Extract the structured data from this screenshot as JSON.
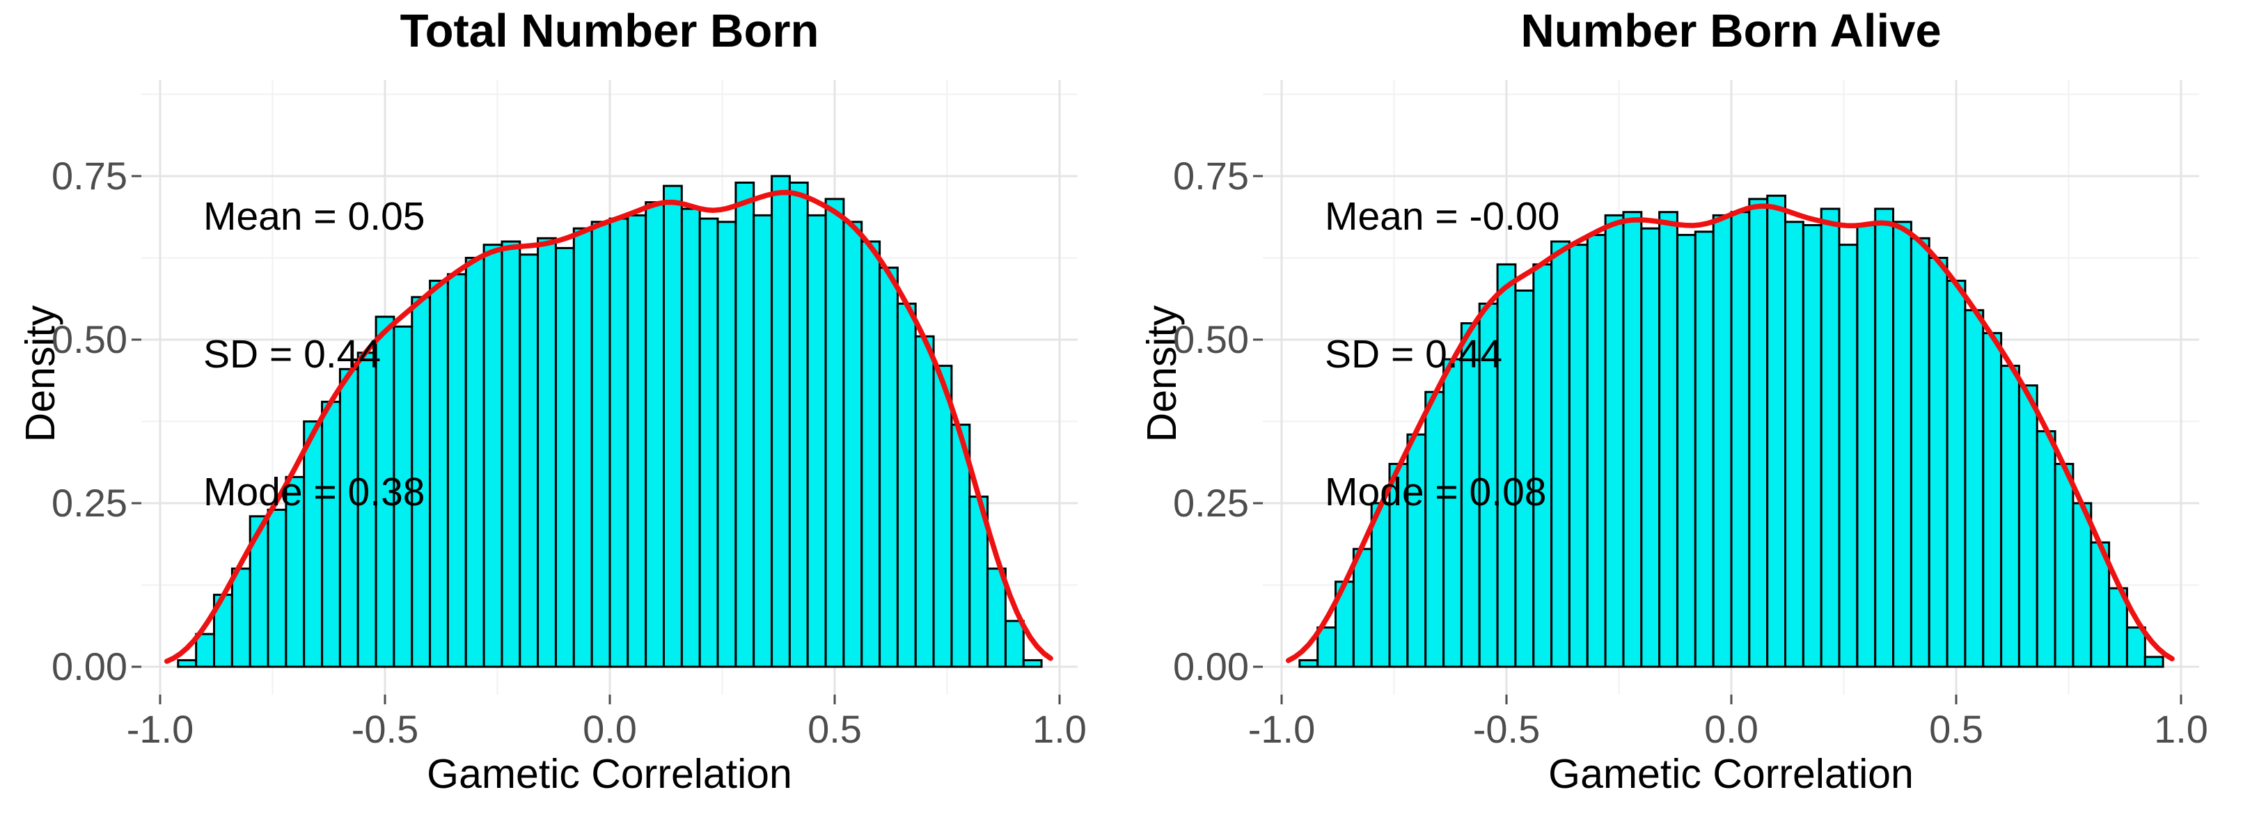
{
  "figure": {
    "background": "#ffffff",
    "panels_count": 2
  },
  "colors": {
    "bar_fill": "#00f0f2",
    "bar_stroke": "#000000",
    "density_curve": "#ee1111",
    "grid_major": "#e4e4e4",
    "grid_minor": "#f1f1f1",
    "tick_label": "#4d4d4d",
    "tick_mark": "#4d4d4d",
    "text": "#000000"
  },
  "chart_data": [
    {
      "type": "bar",
      "subtype": "histogram-with-density-curve",
      "title": "Total Number Born",
      "xlabel": "Gametic Correlation",
      "ylabel": "Density",
      "xlim": [
        -1.0,
        1.0
      ],
      "ylim": [
        0,
        0.9
      ],
      "x_ticks": [
        -1.0,
        -0.5,
        0.0,
        0.5,
        1.0
      ],
      "x_tick_labels": [
        "-1.0",
        "-0.5",
        "0.0",
        "0.5",
        "1.0"
      ],
      "y_ticks": [
        0.0,
        0.25,
        0.5,
        0.75
      ],
      "y_tick_labels": [
        "0.00",
        "0.25",
        "0.50",
        "0.75"
      ],
      "grid": "major+minor",
      "legend": "none",
      "annotation": [
        "Mean = 0.05",
        "SD = 0.44",
        "Mode = 0.38"
      ],
      "bin_width": 0.04,
      "bin_centers": [
        -0.94,
        -0.9,
        -0.86,
        -0.82,
        -0.78,
        -0.74,
        -0.7,
        -0.66,
        -0.62,
        -0.58,
        -0.54,
        -0.5,
        -0.46,
        -0.42,
        -0.38,
        -0.34,
        -0.3,
        -0.26,
        -0.22,
        -0.18,
        -0.14,
        -0.1,
        -0.06,
        -0.02,
        0.02,
        0.06,
        0.1,
        0.14,
        0.18,
        0.22,
        0.26,
        0.3,
        0.34,
        0.38,
        0.42,
        0.46,
        0.5,
        0.54,
        0.58,
        0.62,
        0.66,
        0.7,
        0.74,
        0.78,
        0.82,
        0.86,
        0.9,
        0.94
      ],
      "densities": [
        0.01,
        0.05,
        0.11,
        0.15,
        0.23,
        0.24,
        0.29,
        0.375,
        0.405,
        0.455,
        0.48,
        0.535,
        0.52,
        0.565,
        0.59,
        0.6,
        0.625,
        0.645,
        0.65,
        0.63,
        0.655,
        0.64,
        0.67,
        0.68,
        0.685,
        0.69,
        0.71,
        0.735,
        0.7,
        0.685,
        0.68,
        0.74,
        0.69,
        0.75,
        0.74,
        0.69,
        0.715,
        0.68,
        0.65,
        0.61,
        0.555,
        0.505,
        0.46,
        0.37,
        0.26,
        0.15,
        0.07,
        0.01
      ],
      "curve": {
        "kind": "kde-smoothing-of-bins",
        "color": "#ee1111"
      }
    },
    {
      "type": "bar",
      "subtype": "histogram-with-density-curve",
      "title": "Number Born Alive",
      "xlabel": "Gametic Correlation",
      "ylabel": "Density",
      "xlim": [
        -1.0,
        1.0
      ],
      "ylim": [
        0,
        0.9
      ],
      "x_ticks": [
        -1.0,
        -0.5,
        0.0,
        0.5,
        1.0
      ],
      "x_tick_labels": [
        "-1.0",
        "-0.5",
        "0.0",
        "0.5",
        "1.0"
      ],
      "y_ticks": [
        0.0,
        0.25,
        0.5,
        0.75
      ],
      "y_tick_labels": [
        "0.00",
        "0.25",
        "0.50",
        "0.75"
      ],
      "grid": "major+minor",
      "legend": "none",
      "annotation": [
        "Mean = -0.00",
        "SD = 0.44",
        "Mode = 0.08"
      ],
      "bin_width": 0.04,
      "bin_centers": [
        -0.94,
        -0.9,
        -0.86,
        -0.82,
        -0.78,
        -0.74,
        -0.7,
        -0.66,
        -0.62,
        -0.58,
        -0.54,
        -0.5,
        -0.46,
        -0.42,
        -0.38,
        -0.34,
        -0.3,
        -0.26,
        -0.22,
        -0.18,
        -0.14,
        -0.1,
        -0.06,
        -0.02,
        0.02,
        0.06,
        0.1,
        0.14,
        0.18,
        0.22,
        0.26,
        0.3,
        0.34,
        0.38,
        0.42,
        0.46,
        0.5,
        0.54,
        0.58,
        0.62,
        0.66,
        0.7,
        0.74,
        0.78,
        0.82,
        0.86,
        0.9,
        0.94
      ],
      "densities": [
        0.01,
        0.06,
        0.13,
        0.18,
        0.25,
        0.31,
        0.355,
        0.42,
        0.47,
        0.525,
        0.555,
        0.615,
        0.575,
        0.615,
        0.65,
        0.645,
        0.66,
        0.69,
        0.695,
        0.67,
        0.695,
        0.66,
        0.665,
        0.69,
        0.695,
        0.715,
        0.72,
        0.68,
        0.675,
        0.7,
        0.645,
        0.675,
        0.7,
        0.68,
        0.655,
        0.625,
        0.59,
        0.545,
        0.51,
        0.46,
        0.43,
        0.36,
        0.31,
        0.25,
        0.19,
        0.12,
        0.06,
        0.015
      ],
      "curve": {
        "kind": "kde-smoothing-of-bins",
        "color": "#ee1111"
      }
    }
  ]
}
